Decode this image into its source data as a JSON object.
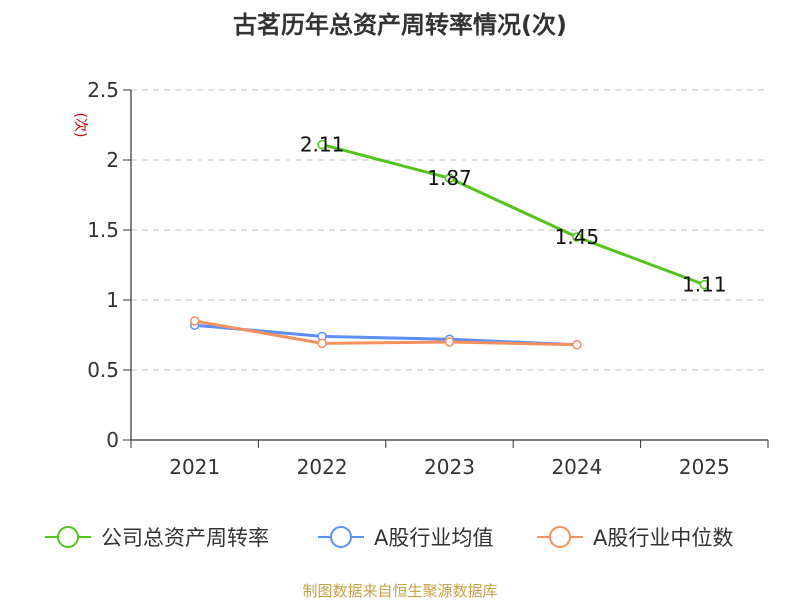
{
  "chart_data": {
    "type": "line",
    "title": "古茗历年总资产周转率情况(次)",
    "ylabel": "(次)",
    "xlabel": "",
    "categories": [
      "2021",
      "2022",
      "2023",
      "2024",
      "2025"
    ],
    "y_ticks": [
      "0",
      "0.5",
      "1",
      "1.5",
      "2",
      "2.5"
    ],
    "ylim": [
      0,
      2.5
    ],
    "grid": true,
    "legend_position": "bottom",
    "series": [
      {
        "name": "公司总资产周转率",
        "color": "#52c41a",
        "values": [
          null,
          2.11,
          1.87,
          1.45,
          1.11
        ],
        "labels": [
          "",
          "2.11",
          "1.87",
          "1.45",
          "1.11"
        ]
      },
      {
        "name": "A股行业均值",
        "color": "#5b8ff9",
        "values": [
          0.82,
          0.74,
          0.72,
          0.68,
          null
        ]
      },
      {
        "name": "A股行业中位数",
        "color": "#f6905f",
        "values": [
          0.85,
          0.69,
          0.7,
          0.68,
          null
        ]
      }
    ]
  },
  "footer": {
    "source": "制图数据来自恒生聚源数据库",
    "source_color": "#c8a24a"
  }
}
